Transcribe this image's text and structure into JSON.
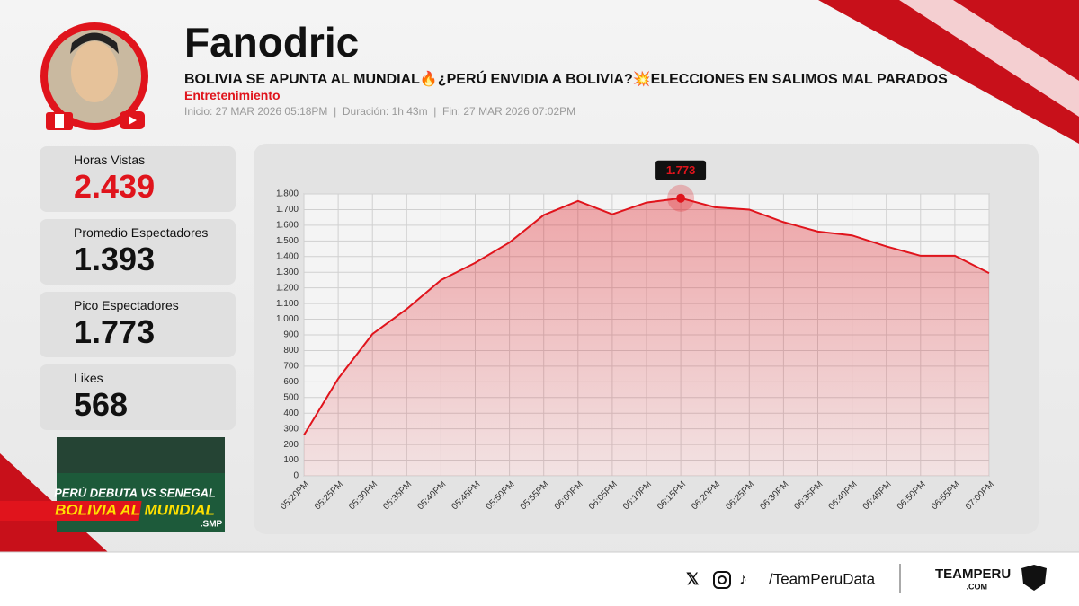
{
  "header": {
    "title": "Fanodric",
    "subtitle": "BOLIVIA SE APUNTA AL MUNDIAL🔥¿PERÚ ENVIDIA A BOLIVIA?💥ELECCIONES EN SALIMOS MAL PARADOS",
    "category": "Entretenimiento",
    "info": "Inicio: 27 MAR 2026 05:18PM  |  Duración: 1h 43m  |  Fin: 27 MAR 2026 07:02PM"
  },
  "stats": [
    {
      "label": "Horas Vistas",
      "value": "2.439"
    },
    {
      "label": "Promedio Espectadores",
      "value": "1.393"
    },
    {
      "label": "Pico Espectadores",
      "value": "1.773"
    },
    {
      "label": "Likes",
      "value": "568"
    }
  ],
  "thumbnail": {
    "line1": "PERÚ DEBUTA VS SENEGAL",
    "line2": "BOLIVIA AL MUNDIAL",
    "tag": ".SMP"
  },
  "chart_data": {
    "type": "area",
    "categories": [
      "05:20PM",
      "05:25PM",
      "05:30PM",
      "05:35PM",
      "05:40PM",
      "05:45PM",
      "05:50PM",
      "05:55PM",
      "06:00PM",
      "06:05PM",
      "06:10PM",
      "06:15PM",
      "06:20PM",
      "06:25PM",
      "06:30PM",
      "06:35PM",
      "06:40PM",
      "06:45PM",
      "06:50PM",
      "06:55PM",
      "07:00PM"
    ],
    "values": [
      260,
      620,
      905,
      1065,
      1250,
      1360,
      1490,
      1665,
      1755,
      1670,
      1745,
      1773,
      1715,
      1700,
      1620,
      1560,
      1535,
      1465,
      1405,
      1405,
      1295
    ],
    "color": "#e0141c",
    "ylim": [
      0,
      1800
    ],
    "yticks": [
      0,
      100,
      200,
      300,
      400,
      500,
      600,
      700,
      800,
      900,
      {
        "value": 1000,
        "label": "1.000"
      },
      {
        "value": 1100,
        "label": "1.100"
      },
      {
        "value": 1200,
        "label": "1.200"
      },
      {
        "value": 1300,
        "label": "1.300"
      },
      {
        "value": 1400,
        "label": "1.400"
      },
      {
        "value": 1500,
        "label": "1.500"
      },
      {
        "value": 1600,
        "label": "1.600"
      },
      {
        "value": 1700,
        "label": "1.700"
      },
      {
        "value": 1800,
        "label": "1.800"
      }
    ],
    "grid": true,
    "annotations": [
      {
        "value": 1773,
        "label": "1.773"
      }
    ]
  },
  "footer": {
    "handle": "/TeamPeruData",
    "brand": "TEAMPERU",
    "domain": ".COM"
  }
}
